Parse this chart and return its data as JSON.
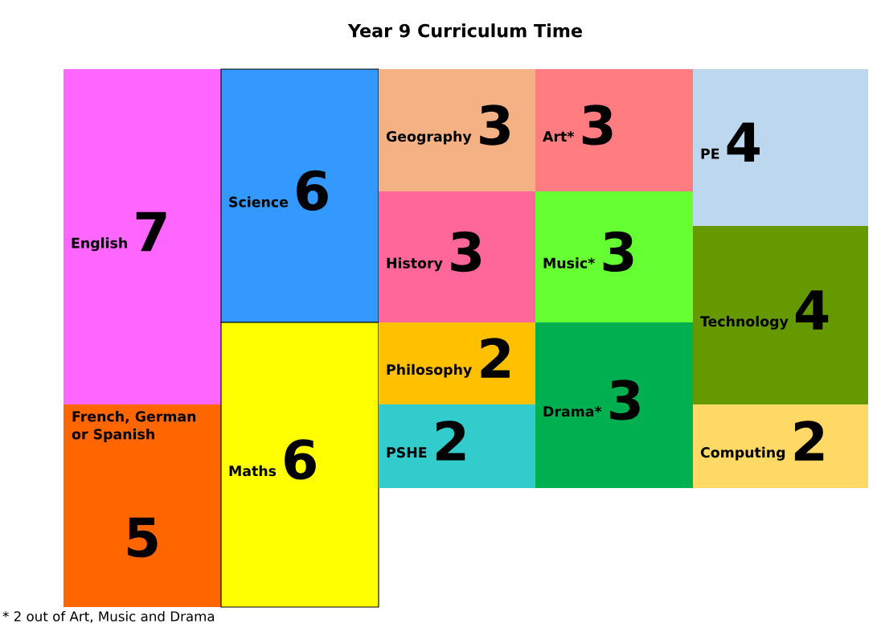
{
  "chart_data": {
    "type": "other",
    "title": "Year 9 Curriculum Time",
    "categories": [
      "English",
      "French, German or Spanish",
      "Science",
      "Maths",
      "Geography",
      "History",
      "Philosophy",
      "PSHE",
      "Art*",
      "Music*",
      "Drama*",
      "PE",
      "Technology",
      "Computing"
    ],
    "values": [
      7,
      5,
      6,
      6,
      3,
      3,
      2,
      2,
      3,
      3,
      3,
      4,
      4,
      2
    ],
    "colors": [
      "#ff66ff",
      "#ff6600",
      "#3399ff",
      "#ffff00",
      "#f4b183",
      "#ff6699",
      "#ffc000",
      "#33cccc",
      "#ff7c80",
      "#66ff33",
      "#00b050",
      "#bdd7ee",
      "#669900",
      "#ffd966"
    ],
    "data_labels": true,
    "annotations": [
      "* 2 out of Art, Music and Drama"
    ]
  }
}
